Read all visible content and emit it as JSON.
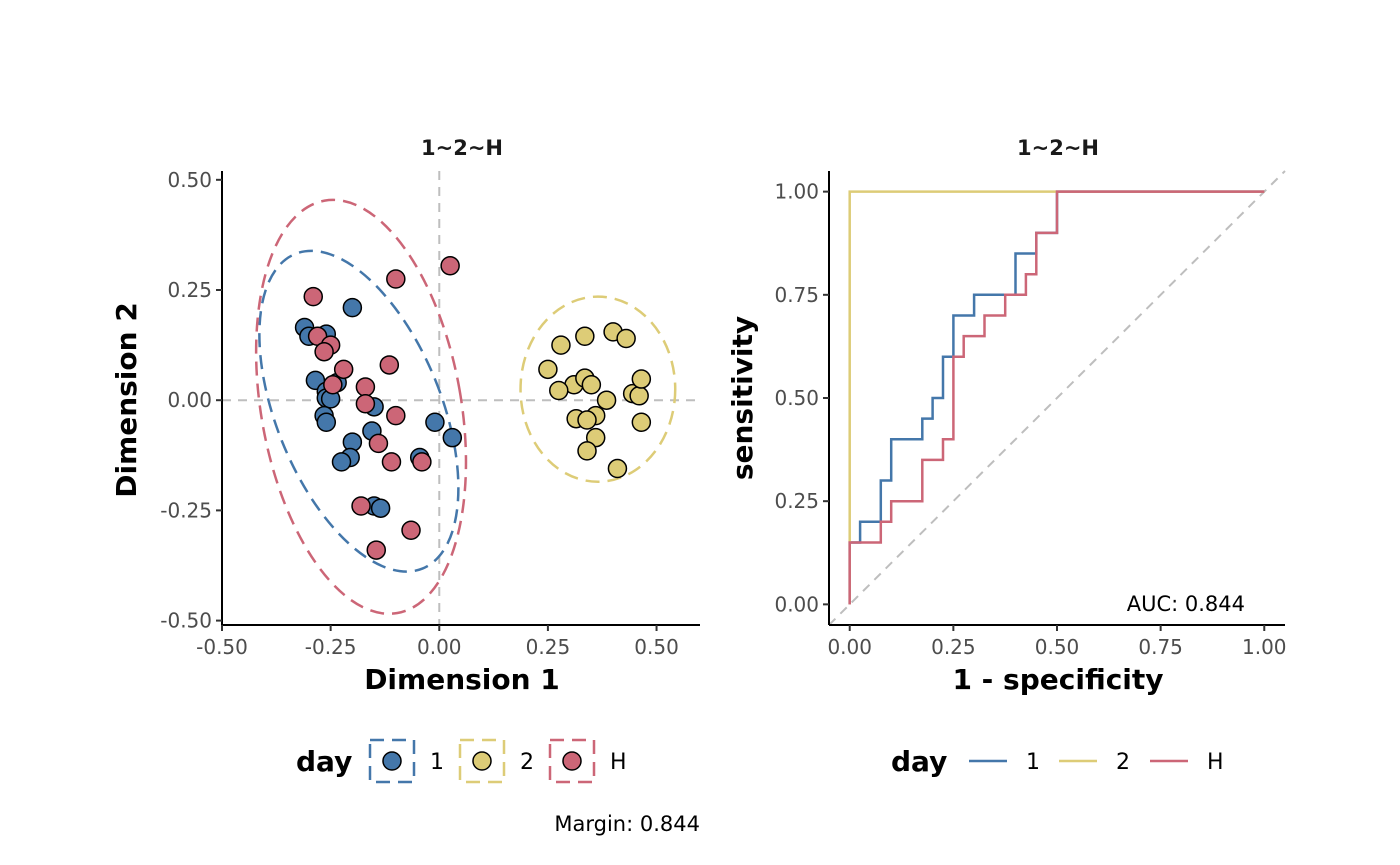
{
  "colors": {
    "1": "#4477AA",
    "2": "#DDCC77",
    "H": "#CC6677",
    "reference": "#BEBEBE"
  },
  "chart_data": [
    {
      "type": "scatter",
      "title": "1~2~H",
      "xlabel": "Dimension 1",
      "ylabel": "Dimension 2",
      "xlim": [
        -0.5,
        0.6
      ],
      "ylim": [
        -0.51,
        0.52
      ],
      "xticks": [
        "-0.50",
        "-0.25",
        "0.00",
        "0.25",
        "0.50"
      ],
      "yticks": [
        "0.50",
        "0.25",
        "0.00",
        "-0.25",
        "-0.50"
      ],
      "reference_lines": {
        "x": 0,
        "y": 0
      },
      "legend": {
        "title": "day",
        "position": "bottom",
        "entries": [
          "1",
          "2",
          "H"
        ]
      },
      "ellipses": [
        {
          "group": "1",
          "cx": -0.185,
          "cy": -0.025,
          "rx": 0.19,
          "ry": 0.385,
          "angle_deg": -22
        },
        {
          "group": "2",
          "cx": 0.365,
          "cy": 0.025,
          "rx": 0.178,
          "ry": 0.21,
          "angle_deg": 0
        },
        {
          "group": "H",
          "cx": -0.18,
          "cy": -0.015,
          "rx": 0.23,
          "ry": 0.475,
          "angle_deg": -10
        }
      ],
      "series": [
        {
          "name": "1",
          "points": [
            [
              -0.2,
              0.21
            ],
            [
              -0.31,
              0.165
            ],
            [
              -0.3,
              0.145
            ],
            [
              -0.26,
              0.15
            ],
            [
              -0.285,
              0.045
            ],
            [
              -0.235,
              0.04
            ],
            [
              -0.26,
              0.02
            ],
            [
              -0.26,
              0.005
            ],
            [
              -0.25,
              0.003
            ],
            [
              -0.15,
              -0.015
            ],
            [
              -0.265,
              -0.035
            ],
            [
              -0.26,
              -0.05
            ],
            [
              -0.155,
              -0.07
            ],
            [
              -0.2,
              -0.095
            ],
            [
              -0.205,
              -0.13
            ],
            [
              -0.225,
              -0.14
            ],
            [
              -0.15,
              -0.24
            ],
            [
              -0.135,
              -0.245
            ],
            [
              -0.045,
              -0.13
            ],
            [
              -0.01,
              -0.05
            ],
            [
              0.03,
              -0.085
            ]
          ]
        },
        {
          "name": "2",
          "points": [
            [
              0.28,
              0.125
            ],
            [
              0.335,
              0.145
            ],
            [
              0.4,
              0.155
            ],
            [
              0.43,
              0.14
            ],
            [
              0.25,
              0.07
            ],
            [
              0.31,
              0.035
            ],
            [
              0.335,
              0.05
            ],
            [
              0.35,
              0.035
            ],
            [
              0.275,
              0.022
            ],
            [
              0.445,
              0.015
            ],
            [
              0.46,
              0.01
            ],
            [
              0.465,
              0.048
            ],
            [
              0.385,
              0.0
            ],
            [
              0.36,
              -0.035
            ],
            [
              0.315,
              -0.042
            ],
            [
              0.34,
              -0.045
            ],
            [
              0.465,
              -0.05
            ],
            [
              0.36,
              -0.085
            ],
            [
              0.34,
              -0.115
            ],
            [
              0.41,
              -0.155
            ]
          ]
        },
        {
          "name": "H",
          "points": [
            [
              0.025,
              0.305
            ],
            [
              -0.1,
              0.275
            ],
            [
              -0.29,
              0.235
            ],
            [
              -0.28,
              0.145
            ],
            [
              -0.25,
              0.125
            ],
            [
              -0.265,
              0.11
            ],
            [
              -0.22,
              0.07
            ],
            [
              -0.115,
              0.08
            ],
            [
              -0.245,
              0.035
            ],
            [
              -0.17,
              0.03
            ],
            [
              -0.17,
              -0.008
            ],
            [
              -0.1,
              -0.035
            ],
            [
              -0.14,
              -0.098
            ],
            [
              -0.11,
              -0.14
            ],
            [
              -0.04,
              -0.14
            ],
            [
              -0.18,
              -0.24
            ],
            [
              -0.065,
              -0.295
            ],
            [
              -0.145,
              -0.34
            ]
          ]
        }
      ]
    },
    {
      "type": "line",
      "title": "1~2~H",
      "xlabel": "1 - specificity",
      "ylabel": "sensitivity",
      "xlim": [
        -0.05,
        1.05
      ],
      "ylim": [
        -0.05,
        1.05
      ],
      "xticks": [
        "0.00",
        "0.25",
        "0.50",
        "0.75",
        "1.00"
      ],
      "yticks": [
        "1.00",
        "0.75",
        "0.50",
        "0.25",
        "0.00"
      ],
      "annotation": "AUC: 0.844",
      "legend": {
        "title": "day",
        "position": "bottom",
        "entries": [
          "1",
          "2",
          "H"
        ]
      },
      "series": [
        {
          "name": "1",
          "x": [
            0,
            0,
            0.025,
            0.025,
            0.075,
            0.075,
            0.1,
            0.1,
            0.175,
            0.175,
            0.2,
            0.2,
            0.225,
            0.225,
            0.25,
            0.25,
            0.3,
            0.3,
            0.4,
            0.4,
            0.45,
            0.45,
            0.5,
            0.5,
            1.0
          ],
          "y": [
            0,
            0.15,
            0.15,
            0.2,
            0.2,
            0.3,
            0.3,
            0.4,
            0.4,
            0.45,
            0.45,
            0.5,
            0.5,
            0.6,
            0.6,
            0.7,
            0.7,
            0.75,
            0.75,
            0.85,
            0.85,
            0.9,
            0.9,
            1.0,
            1.0
          ]
        },
        {
          "name": "2",
          "x": [
            0,
            0,
            1.0
          ],
          "y": [
            0,
            1.0,
            1.0
          ]
        },
        {
          "name": "H",
          "x": [
            0,
            0,
            0.075,
            0.075,
            0.1,
            0.1,
            0.175,
            0.175,
            0.225,
            0.225,
            0.25,
            0.25,
            0.275,
            0.275,
            0.325,
            0.325,
            0.375,
            0.375,
            0.425,
            0.425,
            0.45,
            0.45,
            0.475,
            0.475,
            0.5,
            0.5,
            1.0
          ],
          "y": [
            0,
            0.15,
            0.15,
            0.2,
            0.2,
            0.25,
            0.25,
            0.35,
            0.35,
            0.4,
            0.4,
            0.6,
            0.6,
            0.65,
            0.65,
            0.7,
            0.7,
            0.75,
            0.75,
            0.8,
            0.8,
            0.9,
            0.9,
            0.9,
            0.9,
            1.0,
            1.0
          ]
        }
      ]
    }
  ],
  "footer": {
    "margin_note": "Margin: 0.844"
  }
}
